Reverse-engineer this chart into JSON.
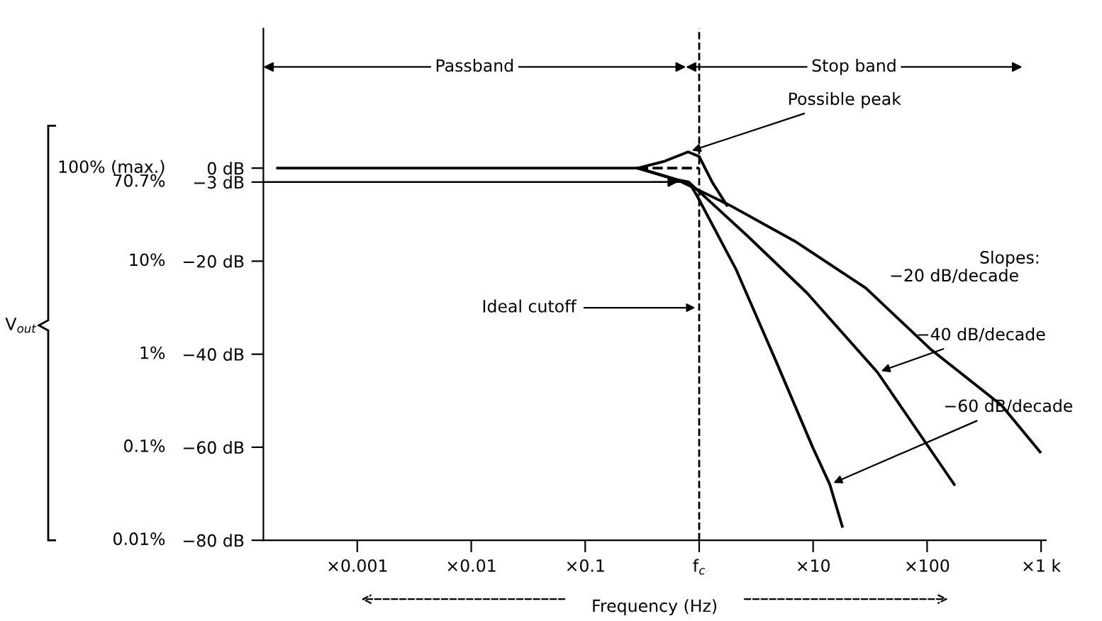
{
  "chart_data": {
    "type": "line",
    "xlabel": "Frequency (Hz)",
    "series": [
      {
        "color": "#000000",
        "x": [
          0.0002,
          0.29,
          0.64,
          1.86,
          6.9,
          29,
          107,
          450,
          980
        ],
        "values": [
          0,
          0,
          -2.5,
          -8,
          -15.7,
          -25.8,
          -38.9,
          -51,
          -61
        ]
      },
      {
        "color": "#000000",
        "x": [
          0.29,
          0.64,
          0.81,
          2.66,
          8.8,
          36.7,
          173
        ],
        "values": [
          0,
          -2.5,
          -3,
          -14.6,
          -26.8,
          -43.9,
          -68
        ]
      },
      {
        "color": "#000000",
        "x": [
          0.29,
          0.64,
          0.81,
          0.96,
          2.1,
          4.8,
          9.9,
          14,
          18
        ],
        "values": [
          0,
          -2.5,
          -3,
          -6,
          -21.7,
          -41.9,
          -60,
          -68,
          -77
        ]
      },
      {
        "color": "#000000",
        "x": [
          0.29,
          0.5,
          0.8,
          1.0,
          1.3,
          1.75
        ],
        "values": [
          0,
          1.5,
          3.5,
          2.5,
          -3,
          -8
        ]
      },
      {
        "color": "#000000",
        "x": [
          0.29,
          1.0
        ],
        "values": [
          0,
          0
        ],
        "line_style": "dashed"
      }
    ],
    "log": "x",
    "xlim": [
      0.00015,
      1100
    ],
    "xticks": [
      {
        "value": 0.001,
        "label": "×0.001"
      },
      {
        "value": 0.01,
        "label": "×0.01"
      },
      {
        "value": 0.1,
        "label": "×0.1"
      },
      {
        "value": 1,
        "label": "f$_{c}$"
      },
      {
        "value": 10,
        "label": "×10"
      },
      {
        "value": 100,
        "label": "×100"
      },
      {
        "value": 1000,
        "label": "×1 k"
      }
    ],
    "ylim": [
      -80,
      30
    ],
    "yticks": [
      {
        "value": 0,
        "label": "0 dB"
      },
      {
        "value": -3,
        "label": "−3 dB"
      },
      {
        "value": -20,
        "label": "−20 dB"
      },
      {
        "value": -40,
        "label": "−40 dB"
      },
      {
        "value": -60,
        "label": "−60 dB"
      },
      {
        "value": -80,
        "label": "−80 dB"
      }
    ],
    "ref_lines": [
      {
        "axis": "x",
        "value": 1,
        "label": "Ideal cutoff",
        "line_style": "dashed"
      },
      {
        "axis": "y",
        "value": -3
      }
    ],
    "annotations": [
      "Passband",
      "Stop band",
      "Slopes:",
      "−20 dB/decade",
      "V$_{out}$",
      "100% (max.)",
      "70.7%",
      "10%",
      "1%",
      "0.1%",
      "0.01%",
      {
        "text": "Possible peak",
        "x": 0.8,
        "y": 3.5
      },
      {
        "text": "−40 dB/decade",
        "x": 36.7,
        "y": -43.9
      },
      {
        "text": "−60 dB/decade",
        "x": 14,
        "y": -68
      }
    ],
    "grid": false,
    "legend": false,
    "marker": "none",
    "line_style": "solid"
  }
}
